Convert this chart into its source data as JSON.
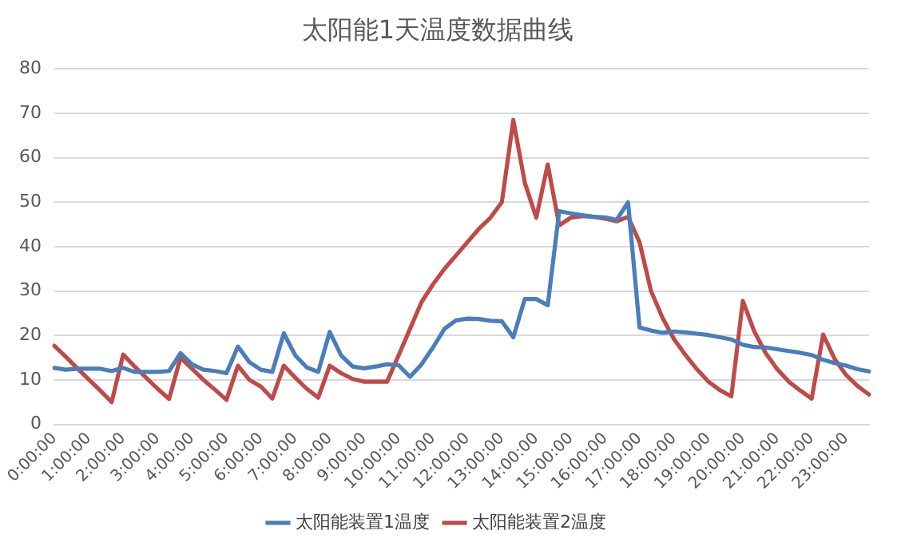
{
  "chart_data": {
    "type": "line",
    "title": "太阳能1天温度数据曲线",
    "categories": [
      "0:00:00",
      null,
      null,
      "1:00:00",
      null,
      null,
      "2:00:00",
      null,
      null,
      "3:00:00",
      null,
      null,
      "4:00:00",
      null,
      null,
      "5:00:00",
      null,
      null,
      "6:00:00",
      null,
      null,
      "7:00:00",
      null,
      null,
      "8:00:00",
      null,
      null,
      "9:00:00",
      null,
      null,
      "10:00:00",
      null,
      null,
      "11:00:00",
      null,
      null,
      "12:00:00",
      null,
      null,
      "13:00:00",
      null,
      null,
      "14:00:00",
      null,
      null,
      "15:00:00",
      null,
      null,
      "16:00:00",
      null,
      null,
      "17:00:00",
      null,
      null,
      "18:00:00",
      null,
      null,
      "19:00:00",
      null,
      null,
      "20:00:00",
      null,
      null,
      "21:00:00",
      null,
      null,
      "22:00:00",
      null,
      null,
      "23:00:00",
      null,
      null
    ],
    "series": [
      {
        "name": "太阳能装置1温度",
        "color": "#4a7ebb",
        "values": [
          12.7,
          12.3,
          12.5,
          12.5,
          12.5,
          12,
          12.7,
          11.8,
          11.8,
          11.8,
          12,
          16,
          13.5,
          12.3,
          12,
          11.5,
          17.5,
          14,
          12.3,
          11.8,
          20.5,
          15.5,
          12.8,
          11.8,
          20.8,
          15.5,
          13,
          12.6,
          13,
          13.5,
          13.3,
          10.7,
          13.5,
          17.3,
          21.5,
          23.4,
          23.8,
          23.7,
          23.3,
          23.2,
          19.6,
          28.2,
          28.2,
          26.8,
          48,
          47.5,
          47.1,
          46.7,
          46.6,
          46,
          50,
          21.8,
          21.1,
          20.6,
          20.9,
          20.7,
          20.4,
          20.1,
          19.6,
          19.1,
          17.9,
          17.4,
          17.3,
          16.9,
          16.5,
          16.1,
          15.6,
          14.5,
          13.8,
          13.2,
          12.4,
          11.9
        ]
      },
      {
        "name": "太阳能装置2温度",
        "color": "#be4b48",
        "values": [
          17.7,
          15.2,
          12.6,
          10.1,
          7.6,
          5,
          15.7,
          13,
          10.5,
          8,
          5.7,
          15,
          12.5,
          10,
          7.8,
          5.5,
          13.2,
          10,
          8.5,
          5.8,
          13.2,
          10.5,
          8,
          6,
          13.2,
          11.5,
          10.2,
          9.6,
          9.6,
          9.6,
          15.5,
          21.5,
          27.5,
          31.5,
          35,
          38,
          41,
          44,
          46.5,
          50,
          68.5,
          54.4,
          46.5,
          58.5,
          44.8,
          46.5,
          46.9,
          46.7,
          46.3,
          45.7,
          46.7,
          41,
          30,
          24,
          19.2,
          15.6,
          12.4,
          9.6,
          7.7,
          6.3,
          27.8,
          20.9,
          16,
          12.4,
          9.6,
          7.6,
          5.8,
          20.2,
          14.7,
          11.1,
          8.6,
          6.7
        ]
      }
    ],
    "ylim": [
      0,
      80
    ],
    "yticks": [
      0,
      10,
      20,
      30,
      40,
      50,
      60,
      70,
      80
    ],
    "grid": "y",
    "legend": "bottom",
    "marker": "none",
    "line_style": "solid"
  }
}
